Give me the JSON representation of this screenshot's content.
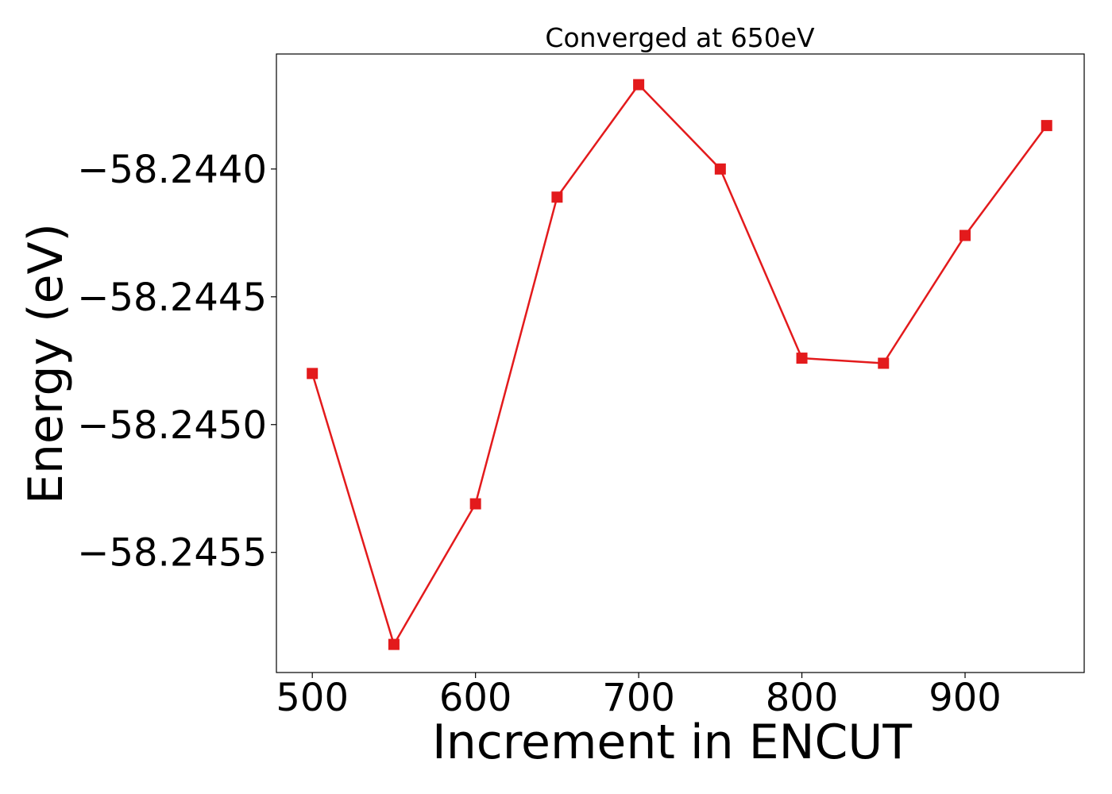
{
  "chart_data": {
    "type": "line",
    "title": "Converged at 650eV",
    "xlabel": "Increment in ENCUT",
    "ylabel": "Energy (eV)",
    "x": [
      500,
      550,
      600,
      650,
      700,
      750,
      800,
      850,
      900,
      950
    ],
    "series": [
      {
        "values": [
          -58.2448,
          -58.24586,
          -58.24531,
          -58.24411,
          -58.24367,
          -58.244,
          -58.24474,
          -58.24476,
          -58.24426,
          -58.24383
        ],
        "color": "#e31a1c",
        "marker": "square"
      }
    ],
    "xlim": [
      478,
      973
    ],
    "ylim": [
      -58.24597,
      -58.24355
    ],
    "xticks": [
      500,
      600,
      700,
      800,
      900
    ],
    "xtick_labels": [
      "500",
      "600",
      "700",
      "800",
      "900"
    ],
    "yticks": [
      -58.244,
      -58.2445,
      -58.245,
      -58.2455
    ],
    "ytick_labels": [
      "−58.2440",
      "−58.2445",
      "−58.2450",
      "−58.2455"
    ],
    "grid": false,
    "legend": "none"
  }
}
